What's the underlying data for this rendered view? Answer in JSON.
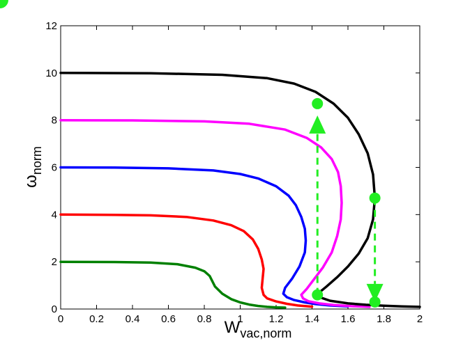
{
  "chart_data": {
    "type": "line",
    "xlabel": {
      "main": "W",
      "sub": "vac,norm"
    },
    "ylabel": {
      "main": "ω",
      "sub": "norm"
    },
    "xlim": [
      0,
      2
    ],
    "ylim": [
      0,
      12
    ],
    "xticks": [
      0,
      0.2,
      0.4,
      0.6,
      0.8,
      1,
      1.2,
      1.4,
      1.6,
      1.8,
      2
    ],
    "xtick_labels": [
      "0",
      "0.2",
      "0.4",
      "0.6",
      "0.8",
      "1",
      "1.2",
      "1.4",
      "1.6",
      "1.8",
      "2"
    ],
    "yticks": [
      0,
      2,
      4,
      6,
      8,
      10,
      12
    ],
    "ytick_labels": [
      "0",
      "2",
      "4",
      "6",
      "8",
      "10",
      "12"
    ],
    "grid": false,
    "legend": "none",
    "series": [
      {
        "color": "#008000",
        "x": [
          0,
          0.3,
          0.5,
          0.65,
          0.75,
          0.8,
          0.83,
          0.86,
          0.9,
          0.95,
          1.0,
          1.05,
          1.1,
          1.15,
          1.2,
          1.25
        ],
        "y": [
          2.0,
          1.99,
          1.97,
          1.9,
          1.75,
          1.6,
          1.4,
          0.95,
          0.65,
          0.42,
          0.28,
          0.19,
          0.13,
          0.09,
          0.07,
          0.06
        ]
      },
      {
        "color": "#ff0000",
        "x": [
          0,
          0.3,
          0.5,
          0.7,
          0.85,
          0.95,
          1.02,
          1.07,
          1.1,
          1.12,
          1.13,
          1.125,
          1.12,
          1.13,
          1.15,
          1.2,
          1.26,
          1.32,
          1.4
        ],
        "y": [
          4.0,
          3.99,
          3.97,
          3.9,
          3.75,
          3.55,
          3.3,
          2.95,
          2.55,
          2.1,
          1.7,
          1.3,
          0.9,
          0.6,
          0.45,
          0.32,
          0.22,
          0.15,
          0.1
        ]
      },
      {
        "color": "#0000ff",
        "x": [
          0,
          0.3,
          0.6,
          0.85,
          1.0,
          1.1,
          1.2,
          1.27,
          1.31,
          1.34,
          1.36,
          1.365,
          1.36,
          1.33,
          1.29,
          1.25,
          1.24,
          1.26,
          1.3,
          1.36,
          1.42,
          1.5,
          1.6
        ],
        "y": [
          6.0,
          5.99,
          5.96,
          5.87,
          5.72,
          5.53,
          5.2,
          4.8,
          4.4,
          3.9,
          3.4,
          2.9,
          2.4,
          1.8,
          1.3,
          0.9,
          0.65,
          0.5,
          0.38,
          0.28,
          0.21,
          0.15,
          0.11
        ]
      },
      {
        "color": "#ff00ff",
        "x": [
          0,
          0.4,
          0.8,
          1.05,
          1.25,
          1.37,
          1.45,
          1.51,
          1.545,
          1.56,
          1.565,
          1.56,
          1.54,
          1.51,
          1.46,
          1.41,
          1.37,
          1.34,
          1.35,
          1.38,
          1.44,
          1.52,
          1.62,
          1.72
        ],
        "y": [
          8.0,
          7.99,
          7.95,
          7.85,
          7.6,
          7.25,
          6.85,
          6.35,
          5.8,
          5.2,
          4.5,
          3.8,
          3.1,
          2.4,
          1.75,
          1.25,
          0.85,
          0.6,
          0.45,
          0.33,
          0.24,
          0.17,
          0.12,
          0.09
        ]
      },
      {
        "color": "#000000",
        "x": [
          0,
          0.5,
          0.9,
          1.15,
          1.3,
          1.42,
          1.52,
          1.6,
          1.66,
          1.71,
          1.74,
          1.75,
          1.74,
          1.71,
          1.66,
          1.6,
          1.54,
          1.48,
          1.44,
          1.43,
          1.45,
          1.5,
          1.6,
          1.7,
          1.8,
          1.9,
          2.0
        ],
        "y": [
          10.0,
          9.99,
          9.92,
          9.78,
          9.55,
          9.2,
          8.7,
          8.1,
          7.4,
          6.6,
          5.7,
          4.7,
          3.8,
          3.0,
          2.35,
          1.8,
          1.35,
          0.95,
          0.7,
          0.6,
          0.48,
          0.35,
          0.24,
          0.18,
          0.14,
          0.11,
          0.09
        ]
      }
    ],
    "annotations": {
      "color": "#22ee22",
      "points": [
        [
          1.43,
          8.7
        ],
        [
          1.43,
          0.6
        ],
        [
          1.75,
          4.7
        ],
        [
          1.75,
          0.3
        ]
      ],
      "arrows": [
        {
          "from": [
            1.43,
            0.6
          ],
          "to": [
            1.43,
            8.2
          ]
        },
        {
          "from": [
            1.75,
            4.7
          ],
          "to": [
            1.75,
            0.3
          ]
        }
      ]
    }
  }
}
